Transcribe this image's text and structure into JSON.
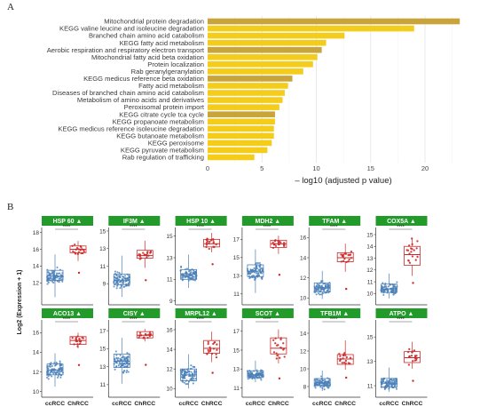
{
  "panels": {
    "a": "A",
    "b": "B"
  },
  "chart_data": [
    {
      "type": "bar",
      "orientation": "horizontal",
      "categories": [
        "Mitochondrial protein degradation",
        "KEGG valine leucine and isoleucine degradation",
        "Branched chain amino acid catabolism",
        "KEGG fatty acid metabolism",
        "Aerobic respiration and respiratory electron transport",
        "Mitochondrial fatty acid beta oxidation",
        "Protein localization",
        "Rab geranylgeranylation",
        "KEGG medicus reference beta oxidation",
        "Fatty acid metabolism",
        "Diseases of branched chain amino acid catabolism",
        "Metabolism of amino acids and derivatives",
        "Peroxisomal protein import",
        "KEGG citrate cycle tca cycle",
        "KEGG propanoate metabolism",
        "KEGG medicus reference isoleucine degradation",
        "KEGG butanoate metabolism",
        "KEGG peroxisome",
        "KEGG pyruvate metabolism",
        "Rab regulation of trafficking"
      ],
      "values": [
        23.2,
        19.0,
        12.6,
        10.9,
        10.5,
        10.1,
        9.7,
        8.8,
        7.8,
        7.4,
        7.1,
        6.9,
        6.6,
        6.2,
        6.2,
        6.1,
        6.1,
        5.9,
        5.5,
        4.3
      ],
      "bar_colors": [
        "#c9a43a",
        "#f4cd1c",
        "#f4cd1c",
        "#f4cd1c",
        "#c9a43a",
        "#f4cd1c",
        "#f4cd1c",
        "#f4cd1c",
        "#c9a43a",
        "#f4cd1c",
        "#f4cd1c",
        "#f4cd1c",
        "#f4cd1c",
        "#c9a43a",
        "#f4cd1c",
        "#f4cd1c",
        "#f4cd1c",
        "#f4cd1c",
        "#f4cd1c",
        "#f4cd1c"
      ],
      "xlim": [
        0,
        24
      ],
      "xticks": [
        "0",
        "5",
        "10",
        "15",
        "20"
      ],
      "xlabel": "– log10 (adjusted p value)",
      "grid": true
    },
    {
      "type": "boxplot",
      "ylabel": "Log2 (Expression + 1)",
      "groups": [
        "ccRCC",
        "ChRCC"
      ],
      "group_colors": [
        "#4a80b8",
        "#cc2a2a"
      ],
      "strip_color": "#239b2a",
      "significance": "****",
      "panels": [
        {
          "gene": "HSP 60",
          "ticks": [
            12,
            14,
            16,
            18
          ],
          "ylim": [
            9.6,
            18.6
          ],
          "cc": {
            "min": 10.3,
            "q1": 12.3,
            "med": 12.8,
            "q3": 13.5,
            "max": 15.4
          },
          "ch": {
            "min": 14.6,
            "q1": 15.6,
            "med": 16.0,
            "q3": 16.4,
            "max": 17.0
          },
          "ch_outlier": 13.2
        },
        {
          "gene": "IF3M",
          "ticks": [
            9,
            11,
            13,
            15
          ],
          "ylim": [
            6.8,
            15.4
          ],
          "cc": {
            "min": 7.5,
            "q1": 8.9,
            "med": 9.4,
            "q3": 10.1,
            "max": 12.2
          },
          "ch": {
            "min": 10.8,
            "q1": 11.9,
            "med": 12.2,
            "q3": 12.8,
            "max": 13.9
          },
          "ch_outlier": 9.4
        },
        {
          "gene": "HSP 10",
          "ticks": [
            9,
            11,
            13,
            15
          ],
          "ylim": [
            8.8,
            15.8
          ],
          "cc": {
            "min": 10.2,
            "q1": 11.0,
            "med": 11.5,
            "q3": 11.9,
            "max": 13.3
          },
          "ch": {
            "min": 13.5,
            "q1": 14.0,
            "med": 14.3,
            "q3": 14.7,
            "max": 15.3
          },
          "ch_outlier": 12.4
        },
        {
          "gene": "MDH2",
          "ticks": [
            11,
            13,
            15,
            17
          ],
          "ylim": [
            10.0,
            18.3
          ],
          "cc": {
            "min": 11.1,
            "q1": 12.9,
            "med": 13.5,
            "q3": 14.2,
            "max": 15.9
          },
          "ch": {
            "min": 15.4,
            "q1": 16.1,
            "med": 16.5,
            "q3": 16.9,
            "max": 17.4
          },
          "ch_outlier": 13.1
        },
        {
          "gene": "TFAM",
          "ticks": [
            10,
            12,
            14,
            16
          ],
          "ylim": [
            9.5,
            17.0
          ],
          "cc": {
            "min": 9.9,
            "q1": 10.6,
            "med": 11.0,
            "q3": 11.5,
            "max": 12.7
          },
          "ch": {
            "min": 12.6,
            "q1": 13.6,
            "med": 14.0,
            "q3": 14.5,
            "max": 15.4
          },
          "ch_outlier": 10.9
        },
        {
          "gene": "COX5A",
          "ticks": [
            10,
            11,
            12,
            13,
            14,
            15
          ],
          "ylim": [
            9.2,
            15.6
          ],
          "cc": {
            "min": 9.6,
            "q1": 10.1,
            "med": 10.4,
            "q3": 10.8,
            "max": 11.7
          },
          "ch": {
            "min": 11.5,
            "q1": 12.4,
            "med": 13.3,
            "q3": 14.0,
            "max": 14.7
          },
          "ch_outlier": 10.9
        },
        {
          "gene": "ACO13",
          "ticks": [
            10,
            12,
            14,
            16
          ],
          "ylim": [
            9.6,
            17.3
          ],
          "cc": {
            "min": 10.5,
            "q1": 11.7,
            "med": 12.2,
            "q3": 12.8,
            "max": 13.9
          },
          "ch": {
            "min": 14.4,
            "q1": 14.8,
            "med": 15.2,
            "q3": 15.6,
            "max": 16.0
          },
          "ch_outlier": 12.7
        },
        {
          "gene": "CISY",
          "ticks": [
            11,
            13,
            15,
            17
          ],
          "ylim": [
            9.8,
            18.2
          ],
          "cc": {
            "min": 11.1,
            "q1": 12.9,
            "med": 13.6,
            "q3": 14.4,
            "max": 16.2
          },
          "ch": {
            "min": 15.8,
            "q1": 16.2,
            "med": 16.5,
            "q3": 16.9,
            "max": 17.2
          },
          "ch_outlier": 13.2
        },
        {
          "gene": "MRPL12",
          "ticks": [
            10,
            12,
            14,
            16
          ],
          "ylim": [
            9.3,
            17.0
          ],
          "cc": {
            "min": 10.0,
            "q1": 10.8,
            "med": 11.4,
            "q3": 12.0,
            "max": 13.5
          },
          "ch": {
            "min": 12.7,
            "q1": 13.6,
            "med": 14.1,
            "q3": 14.9,
            "max": 15.8
          },
          "ch_outlier": 11.6
        },
        {
          "gene": "SCOT",
          "ticks": [
            11,
            13,
            15,
            17
          ],
          "ylim": [
            10.2,
            18.2
          ],
          "cc": {
            "min": 11.6,
            "q1": 12.1,
            "med": 12.4,
            "q3": 12.8,
            "max": 13.9
          },
          "ch": {
            "min": 13.6,
            "q1": 14.6,
            "med": 15.2,
            "q3": 16.3,
            "max": 17.2
          },
          "ch_outlier": 12.0
        },
        {
          "gene": "TFB1M",
          "ticks": [
            8,
            10,
            12,
            14
          ],
          "ylim": [
            7.0,
            15.5
          ],
          "cc": {
            "min": 7.5,
            "q1": 8.1,
            "med": 8.4,
            "q3": 8.9,
            "max": 9.8
          },
          "ch": {
            "min": 9.9,
            "q1": 10.5,
            "med": 11.1,
            "q3": 11.6,
            "max": 13.2
          },
          "ch_outlier": 9.0
        },
        {
          "gene": "ATPO",
          "ticks": [
            11,
            13,
            15
          ],
          "ylim": [
            10.2,
            16.4
          ],
          "cc": {
            "min": 10.5,
            "q1": 10.9,
            "med": 11.2,
            "q3": 11.6,
            "max": 12.5
          },
          "ch": {
            "min": 12.4,
            "q1": 12.9,
            "med": 13.3,
            "q3": 13.8,
            "max": 14.6
          },
          "ch_outlier": 11.4
        }
      ]
    }
  ]
}
